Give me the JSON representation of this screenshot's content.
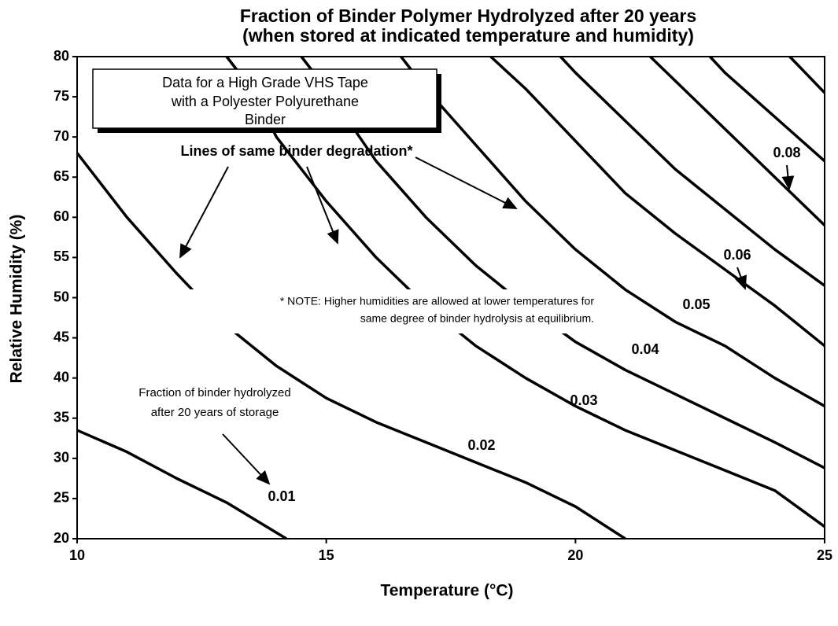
{
  "chart_data": {
    "type": "line",
    "title": [
      "Fraction of Binder Polymer Hydrolyzed after 20 years",
      "(when stored at indicated temperature and humidity)"
    ],
    "xlabel": "Temperature   (°C)",
    "ylabel": "Relative Humidity (%)",
    "xlim": [
      10,
      25
    ],
    "xticks": [
      10,
      15,
      20,
      25
    ],
    "ylim": [
      20,
      80
    ],
    "yticks": [
      20,
      25,
      30,
      35,
      40,
      45,
      50,
      55,
      60,
      65,
      70,
      75,
      80
    ],
    "color": "#000000",
    "annotations": {
      "box": [
        "Data for a High Grade VHS Tape",
        "with a Polyester Polyurethane",
        "Binder"
      ],
      "lines_note": "Lines of same binder degradation*",
      "note": [
        "* NOTE:  Higher humidities are allowed at lower temperatures for",
        "same degree of binder hydrolysis at equilibrium."
      ],
      "fraction": [
        "Fraction of binder hydrolyzed",
        "after 20 years of storage"
      ]
    },
    "series": [
      {
        "name": "0.01",
        "x": [
          10,
          11,
          12,
          13,
          14.2
        ],
        "values": [
          33.5,
          30.8,
          27.5,
          24.5,
          20
        ]
      },
      {
        "name": "0.02",
        "x": [
          10,
          11,
          12,
          13,
          14,
          15,
          16,
          17,
          18,
          19,
          20,
          21
        ],
        "values": [
          68,
          60,
          53,
          46.5,
          41.5,
          37.5,
          34.5,
          32,
          29.5,
          27,
          24,
          20
        ]
      },
      {
        "name": "0.03",
        "x": [
          13,
          13.5,
          14,
          15,
          16,
          17,
          18,
          19,
          20,
          21,
          22,
          23,
          24,
          25
        ],
        "values": [
          80,
          76,
          70,
          62,
          55,
          49,
          44,
          40,
          36.5,
          33.5,
          31,
          28.5,
          26,
          21.5
        ]
      },
      {
        "name": "0.04",
        "x": [
          14.5,
          15,
          16,
          17,
          18,
          19,
          20,
          21,
          22,
          23,
          24,
          25
        ],
        "values": [
          80,
          76,
          67,
          60,
          54,
          49,
          44.5,
          41,
          38,
          35,
          32,
          28.8
        ]
      },
      {
        "name": "0.05",
        "x": [
          16.5,
          17,
          18,
          19,
          20,
          21,
          22,
          23,
          24,
          25
        ],
        "values": [
          80,
          76,
          69,
          62,
          56,
          51,
          47,
          44,
          40,
          36.5
        ]
      },
      {
        "name": "0.06",
        "x": [
          18.3,
          19,
          20,
          21,
          22,
          23,
          24,
          25
        ],
        "values": [
          80,
          76,
          69.5,
          63,
          58,
          53.5,
          49,
          44
        ]
      },
      {
        "x": [
          19.7,
          20,
          21,
          22,
          23,
          24,
          25
        ],
        "values": [
          80,
          78,
          72,
          66,
          61,
          56,
          51.5
        ]
      },
      {
        "name": "0.08",
        "x": [
          21.5,
          22,
          23,
          24,
          25
        ],
        "values": [
          80,
          77,
          71,
          65,
          59
        ]
      },
      {
        "x": [
          22.7,
          23,
          24,
          25
        ],
        "values": [
          80,
          78,
          72.5,
          67
        ]
      },
      {
        "x": [
          24.3,
          25
        ],
        "values": [
          80,
          75.5
        ]
      }
    ]
  }
}
